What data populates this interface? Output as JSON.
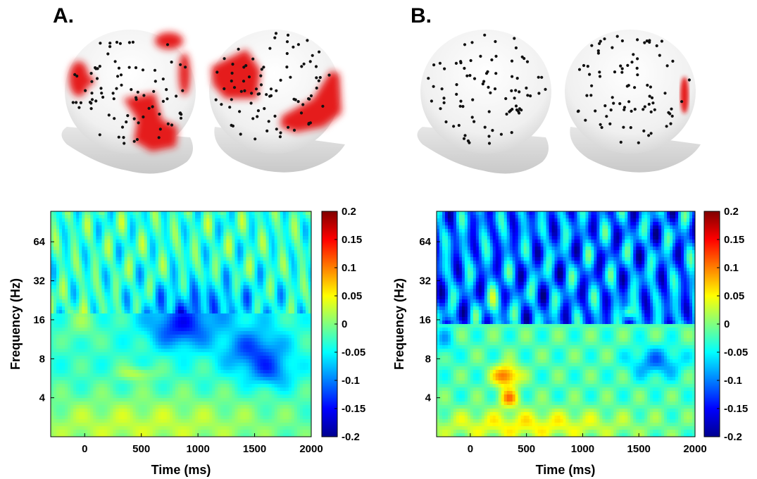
{
  "panels": [
    {
      "letter": "A."
    },
    {
      "letter": "B."
    }
  ],
  "chart_data": [
    {
      "type": "heatmap",
      "panel": "A.",
      "xlabel": "Time (ms)",
      "ylabel": "Frequency (Hz)",
      "x_ticks": [
        0,
        500,
        1000,
        1500,
        2000
      ],
      "y_ticks": [
        4,
        8,
        16,
        32,
        64
      ],
      "xlim": [
        -300,
        2000
      ],
      "ylim": [
        2,
        110
      ],
      "y_scale": "log",
      "colorbar": {
        "min": -0.2,
        "max": 0.2,
        "ticks": [
          "0.2",
          "0.15",
          "0.1",
          "0.05",
          "0",
          "-0.05",
          "-0.1",
          "-0.15",
          "-0.2"
        ],
        "colormap": "jet"
      },
      "grid": false
    },
    {
      "type": "heatmap",
      "panel": "B.",
      "xlabel": "Time (ms)",
      "ylabel": "Frequency (Hz)",
      "x_ticks": [
        0,
        500,
        1000,
        1500,
        2000
      ],
      "y_ticks": [
        4,
        8,
        16,
        32,
        64
      ],
      "xlim": [
        -300,
        2000
      ],
      "ylim": [
        2,
        110
      ],
      "y_scale": "log",
      "colorbar": {
        "min": -0.2,
        "max": 0.2,
        "ticks": [
          "0.2",
          "0.15",
          "0.1",
          "0.05",
          "0",
          "-0.05",
          "-0.1",
          "-0.15",
          "-0.2"
        ],
        "colormap": "jet"
      },
      "grid": false
    }
  ],
  "topography_colors": {
    "significant": "#e51b1b",
    "scalp": "#eeeeee",
    "electrode": "#111111"
  }
}
